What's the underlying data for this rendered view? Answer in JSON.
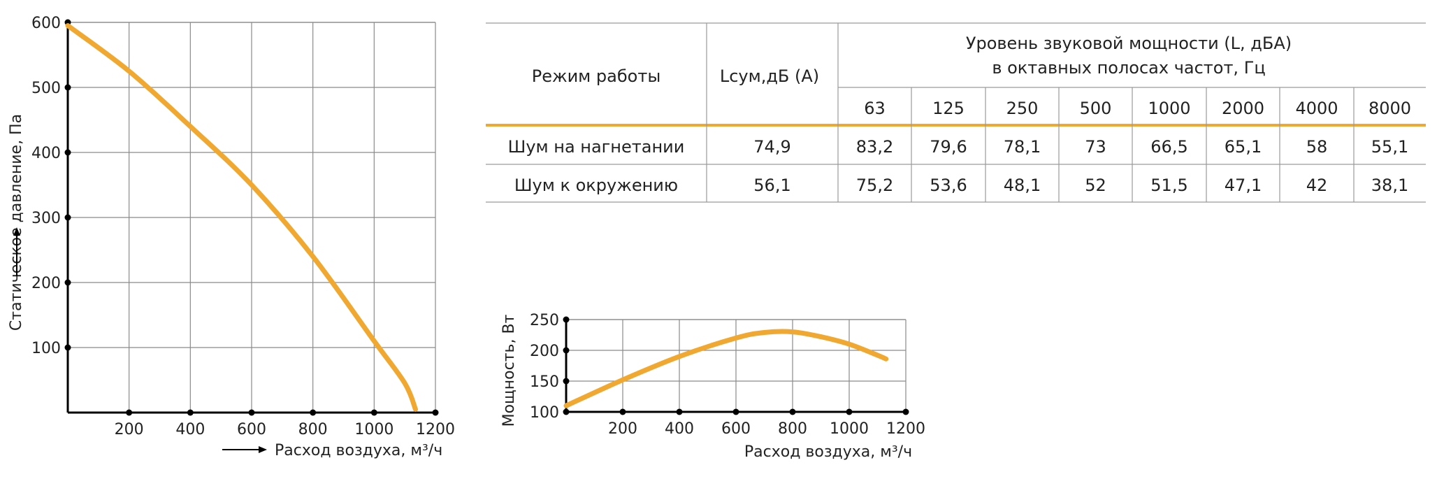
{
  "chart_data": [
    {
      "type": "line",
      "xlabel": "Расход воздуха, м³/ч",
      "ylabel": "Статическое давление, Па",
      "x_ticks": [
        200,
        400,
        600,
        800,
        1000,
        1200
      ],
      "y_ticks": [
        100,
        200,
        300,
        400,
        500,
        600
      ],
      "xlim": [
        0,
        1200
      ],
      "ylim": [
        0,
        600
      ],
      "grid": true,
      "series": [
        {
          "x": [
            0,
            200,
            400,
            600,
            800,
            1000,
            1100,
            1135
          ],
          "y": [
            595,
            525,
            440,
            350,
            240,
            110,
            45,
            5
          ]
        }
      ]
    },
    {
      "type": "line",
      "xlabel": "Расход воздуха, м³/ч",
      "ylabel": "Мощность, Вт",
      "x_ticks": [
        200,
        400,
        600,
        800,
        1000,
        1200
      ],
      "y_ticks": [
        100,
        150,
        200,
        250
      ],
      "xlim": [
        0,
        1200
      ],
      "ylim": [
        100,
        250
      ],
      "grid": true,
      "series": [
        {
          "x": [
            0,
            200,
            400,
            600,
            700,
            800,
            900,
            1000,
            1100,
            1130
          ],
          "y": [
            110,
            152,
            190,
            220,
            229,
            230,
            222,
            210,
            192,
            186
          ]
        }
      ]
    }
  ],
  "table": {
    "header_mode": "Режим работы",
    "header_lsum": "Lсум,дБ (A)",
    "header_group_line1": "Уровень звуковой мощности (L, дБА)",
    "header_group_line2": "в октавных полосах частот, Гц",
    "freqs": [
      "63",
      "125",
      "250",
      "500",
      "1000",
      "2000",
      "4000",
      "8000"
    ],
    "rows": [
      {
        "mode": "Шум на нагнетании",
        "lsum": "74,9",
        "values": [
          "83,2",
          "79,6",
          "78,1",
          "73",
          "66,5",
          "65,1",
          "58",
          "55,1"
        ]
      },
      {
        "mode": "Шум к окружению",
        "lsum": "56,1",
        "values": [
          "75,2",
          "53,6",
          "48,1",
          "52",
          "51,5",
          "47,1",
          "42",
          "38,1"
        ]
      }
    ]
  },
  "colors": {
    "curve": "#f0a830",
    "grid": "#8a8a8a",
    "axis": "#000000"
  }
}
